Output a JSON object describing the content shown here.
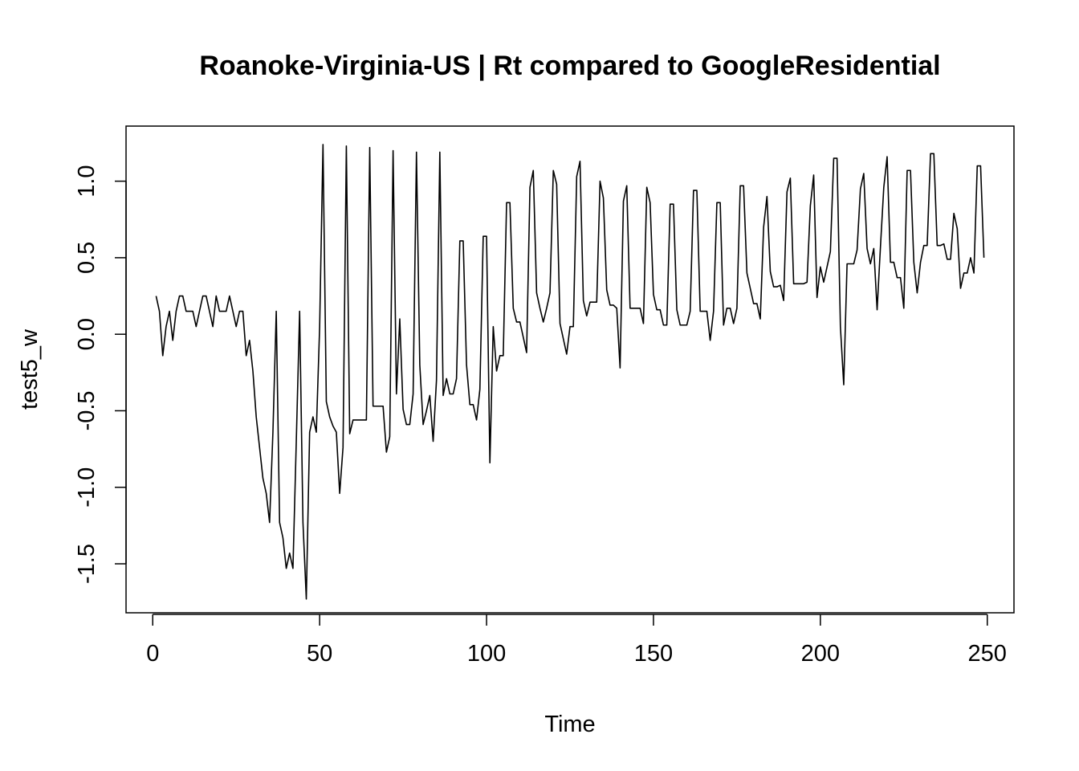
{
  "chart_data": {
    "type": "line",
    "title": "Roanoke-Virginia-US | Rt compared to GoogleResidential",
    "xlabel": "Time",
    "ylabel": "test5_w",
    "xlim": [
      -8,
      258
    ],
    "ylim": [
      -1.82,
      1.36
    ],
    "x_ticks": [
      0,
      50,
      100,
      150,
      200,
      250
    ],
    "y_ticks": [
      -1.5,
      -1.0,
      -0.5,
      0.0,
      0.5,
      1.0
    ],
    "x_tick_labels": [
      "0",
      "50",
      "100",
      "150",
      "200",
      "250"
    ],
    "y_tick_labels": [
      "-1.5",
      "-1.0",
      "-0.5",
      "0.0",
      "0.5",
      "1.0"
    ],
    "grid": false,
    "line_color": "#000000",
    "series": [
      {
        "x_start": 1,
        "values": [
          0.25,
          0.15,
          -0.14,
          0.05,
          0.15,
          -0.04,
          0.15,
          0.25,
          0.25,
          0.15,
          0.15,
          0.15,
          0.05,
          0.15,
          0.25,
          0.25,
          0.15,
          0.05,
          0.25,
          0.15,
          0.15,
          0.15,
          0.25,
          0.15,
          0.05,
          0.15,
          0.15,
          -0.14,
          -0.04,
          -0.24,
          -0.54,
          -0.74,
          -0.94,
          -1.04,
          -1.23,
          -0.64,
          0.15,
          -1.23,
          -1.33,
          -1.53,
          -1.43,
          -1.53,
          -0.7,
          0.15,
          -1.23,
          -1.73,
          -0.64,
          -0.54,
          -0.64,
          0.05,
          1.24,
          -0.44,
          -0.54,
          -0.6,
          -0.64,
          -1.04,
          -0.74,
          1.23,
          -0.65,
          -0.56,
          -0.56,
          -0.56,
          -0.56,
          -0.56,
          1.22,
          -0.47,
          -0.47,
          -0.47,
          -0.47,
          -0.77,
          -0.67,
          1.2,
          -0.39,
          0.1,
          -0.49,
          -0.59,
          -0.59,
          -0.39,
          1.19,
          -0.2,
          -0.59,
          -0.5,
          -0.4,
          -0.7,
          -0.3,
          1.19,
          -0.4,
          -0.29,
          -0.39,
          -0.39,
          -0.29,
          0.61,
          0.61,
          -0.2,
          -0.46,
          -0.46,
          -0.56,
          -0.36,
          0.64,
          0.64,
          -0.84,
          0.05,
          -0.24,
          -0.14,
          -0.14,
          0.86,
          0.86,
          0.17,
          0.08,
          0.08,
          -0.02,
          -0.12,
          0.96,
          1.07,
          0.27,
          0.17,
          0.08,
          0.17,
          0.27,
          1.07,
          0.98,
          0.07,
          -0.03,
          -0.13,
          0.05,
          0.05,
          1.03,
          1.13,
          0.22,
          0.12,
          0.21,
          0.21,
          0.21,
          1.0,
          0.89,
          0.29,
          0.19,
          0.19,
          0.17,
          -0.22,
          0.87,
          0.97,
          0.17,
          0.17,
          0.17,
          0.17,
          0.07,
          0.96,
          0.86,
          0.26,
          0.16,
          0.16,
          0.06,
          0.06,
          0.85,
          0.85,
          0.16,
          0.06,
          0.06,
          0.06,
          0.15,
          0.94,
          0.94,
          0.15,
          0.15,
          0.15,
          -0.04,
          0.15,
          0.86,
          0.86,
          0.06,
          0.17,
          0.17,
          0.07,
          0.17,
          0.97,
          0.97,
          0.4,
          0.3,
          0.2,
          0.2,
          0.1,
          0.7,
          0.9,
          0.41,
          0.31,
          0.31,
          0.32,
          0.22,
          0.93,
          1.02,
          0.33,
          0.33,
          0.33,
          0.33,
          0.34,
          0.84,
          1.04,
          0.24,
          0.44,
          0.34,
          0.44,
          0.54,
          1.15,
          1.15,
          0.05,
          -0.33,
          0.46,
          0.46,
          0.46,
          0.55,
          0.95,
          1.05,
          0.56,
          0.46,
          0.56,
          0.16,
          0.57,
          0.96,
          1.16,
          0.47,
          0.47,
          0.37,
          0.37,
          0.17,
          1.07,
          1.07,
          0.47,
          0.27,
          0.47,
          0.58,
          0.58,
          1.18,
          1.18,
          0.58,
          0.58,
          0.59,
          0.49,
          0.49,
          0.79,
          0.69,
          0.3,
          0.4,
          0.4,
          0.5,
          0.4,
          1.1,
          1.1,
          0.5
        ]
      }
    ]
  }
}
